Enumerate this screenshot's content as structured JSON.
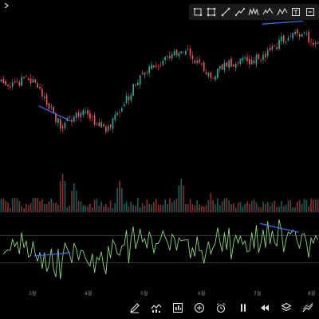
{
  "corner_icon": "chevron-right-icon",
  "toolbar": {
    "top_icons": [
      "rectangle-select-icon",
      "crop-icon",
      "trendline-icon",
      "path-icon",
      "pattern-icon",
      "wave-icon",
      "zigzag-icon",
      "text-box-icon",
      "more-icon"
    ],
    "bottom_icons": [
      "pencil-icon",
      "indicator-icon",
      "chart-style-icon",
      "add-icon",
      "alarm-clock-icon",
      "pause-icon",
      "rewind-icon",
      "layers-icon",
      "drawing-tools-icon"
    ]
  },
  "time_axis": {
    "labels": [
      "3월",
      "4월",
      "5월",
      "6월",
      "7월",
      "8월"
    ]
  },
  "colors": {
    "background": "#000000",
    "up": "#26a69a",
    "down": "#ef5350",
    "trendline": "#3f6bf0",
    "oscillator": "#8bd47a",
    "level_line": "#6b6b6b",
    "toolbar_bg": "#1b1b1d"
  },
  "chart_data": {
    "type": "candlestick",
    "title": "",
    "xlabel": "",
    "ylabel": "",
    "panes": [
      "price",
      "volume",
      "oscillator"
    ],
    "price_range": [
      0,
      100
    ],
    "oscillator_range": [
      0,
      100
    ],
    "oscillator_levels": [
      70,
      30
    ],
    "price_anchors": [
      54,
      52,
      56,
      52,
      40,
      25,
      30,
      34,
      27,
      22,
      34,
      46,
      60,
      64,
      68,
      72,
      73,
      63,
      58,
      64,
      67,
      68,
      70,
      74,
      82,
      84,
      84,
      78
    ],
    "volume_spikes": [
      [
        27,
        80
      ],
      [
        32,
        60
      ],
      [
        52,
        65
      ],
      [
        79,
        70
      ],
      [
        92,
        40
      ]
    ],
    "trendlines": [
      {
        "pane": "price",
        "from": [
          17,
          38
        ],
        "to": [
          31,
          28
        ]
      },
      {
        "pane": "price",
        "from": [
          115,
          92
        ],
        "to": [
          133,
          94
        ]
      },
      {
        "pane": "oscillator",
        "from": [
          15,
          40
        ],
        "to": [
          31,
          45
        ]
      },
      {
        "pane": "oscillator",
        "from": [
          114,
          88
        ],
        "to": [
          131,
          75
        ]
      }
    ]
  }
}
